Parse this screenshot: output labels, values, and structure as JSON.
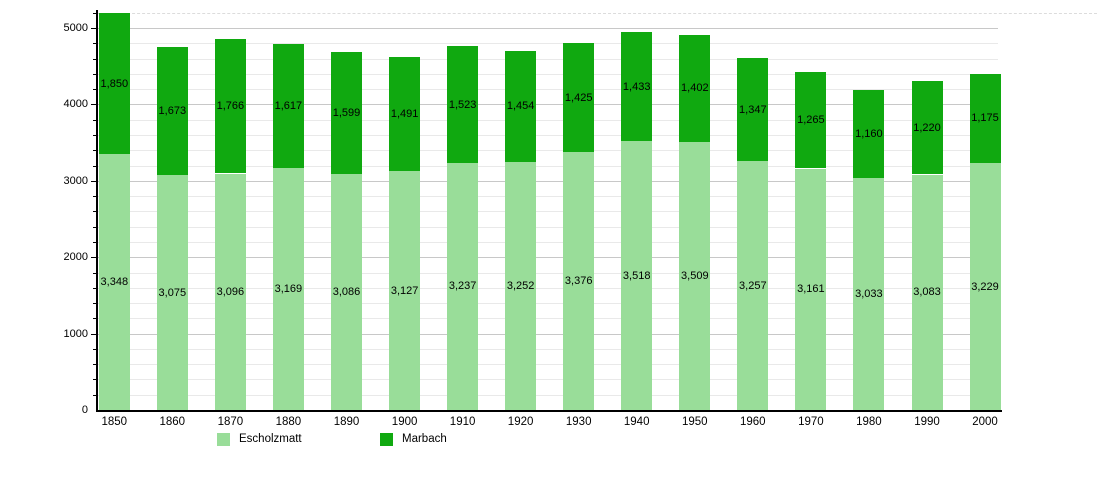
{
  "chart_data": {
    "type": "bar",
    "stacked": true,
    "title": "",
    "xlabel": "",
    "ylabel": "",
    "categories": [
      "1850",
      "1860",
      "1870",
      "1880",
      "1890",
      "1900",
      "1910",
      "1920",
      "1930",
      "1940",
      "1950",
      "1960",
      "1970",
      "1980",
      "1990",
      "2000"
    ],
    "series": [
      {
        "name": "Escholzmatt",
        "color": "#99DD99",
        "values": [
          3348,
          3075,
          3096,
          3169,
          3086,
          3127,
          3237,
          3252,
          3376,
          3518,
          3509,
          3257,
          3161,
          3033,
          3083,
          3229
        ]
      },
      {
        "name": "Marbach",
        "color": "#10A910",
        "values": [
          1850,
          1673,
          1766,
          1617,
          1599,
          1491,
          1523,
          1454,
          1425,
          1433,
          1402,
          1347,
          1265,
          1160,
          1220,
          1175
        ]
      }
    ],
    "ylim": [
      0,
      5200
    ],
    "yticks": [
      0,
      1000,
      2000,
      3000,
      4000,
      5000
    ],
    "minor_tick_step": 200,
    "grid": true,
    "value_label_format": "thousands-comma",
    "legend_position": "bottom",
    "colors": {
      "axis": "#000000",
      "major_grid": "#c8c8c8",
      "minor_grid": "#e9e9e9",
      "label": "#000000",
      "background": "#ffffff"
    }
  }
}
